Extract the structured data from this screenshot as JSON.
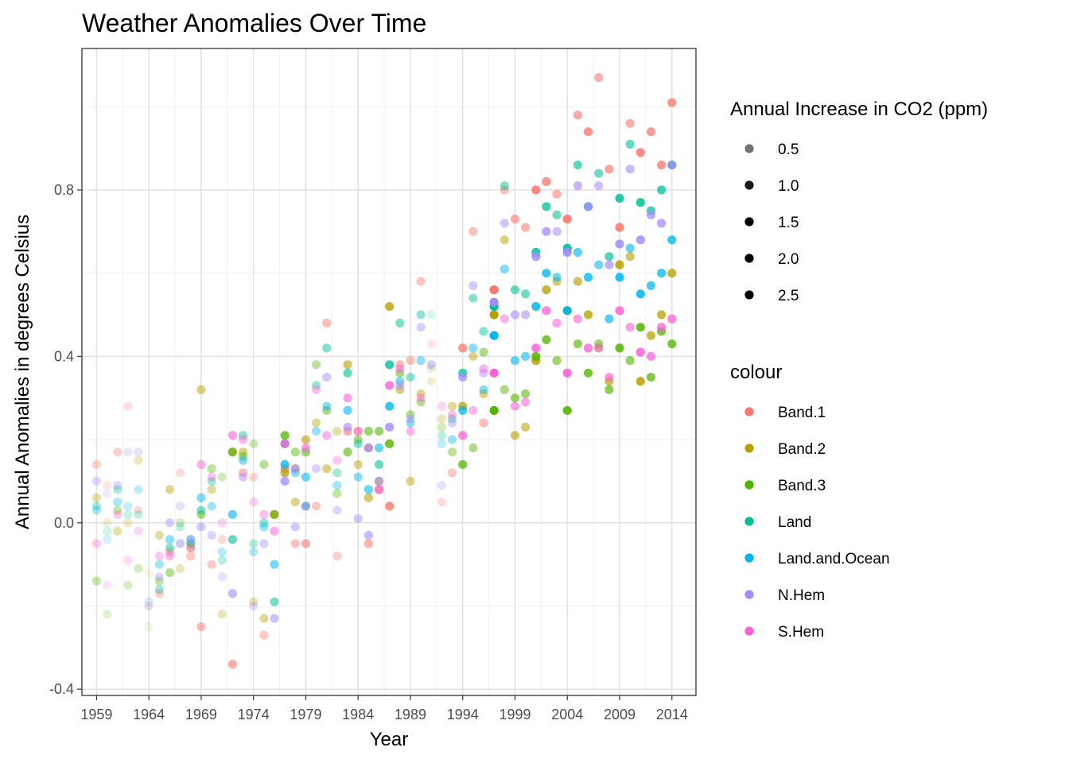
{
  "chart_data": {
    "type": "scatter",
    "title": "Weather Anomalies Over Time",
    "xlabel": "Year",
    "ylabel": "Annual Anomalies in degrees Celsius",
    "xlim": [
      1957.6,
      2016.3
    ],
    "ylim": [
      -0.415,
      1.14
    ],
    "x_ticks": [
      1959,
      1964,
      1969,
      1974,
      1979,
      1984,
      1989,
      1994,
      1999,
      2004,
      2009,
      2014
    ],
    "y_ticks": [
      -0.4,
      0.0,
      0.4,
      0.8
    ],
    "y_tick_labels": [
      "-0.4",
      "0.0",
      "0.4",
      "0.8"
    ],
    "grid": true,
    "legend_position": "right",
    "size_legend": {
      "title": "Annual Increase in CO2 (ppm)",
      "labels": [
        "0.5",
        "1.0",
        "1.5",
        "2.0",
        "2.5"
      ],
      "alphas": [
        0.55,
        0.9,
        1.0,
        1.0,
        1.0
      ]
    },
    "colour_legend": {
      "title": "colour"
    },
    "co2_increase_by_year": [
      0.94,
      0.5,
      0.95,
      0.64,
      0.71,
      0.28,
      1.02,
      1.24,
      0.73,
      1.15,
      1.41,
      1.06,
      0.77,
      1.72,
      1.32,
      0.86,
      1.16,
      1.5,
      2.13,
      1.3,
      1.66,
      1.13,
      1.35,
      0.99,
      1.66,
      1.33,
      1.61,
      1.64,
      2.25,
      1.42,
      1.25,
      1.24,
      0.46,
      0.73,
      1.14,
      2.11,
      1.31,
      1.36,
      2.83,
      1.39,
      1.69,
      1.58,
      2.39,
      2.16,
      1.57,
      2.53,
      1.79,
      2.19,
      1.6,
      1.89,
      2.4,
      1.7,
      2.4,
      2.04,
      2.11,
      2.18
    ],
    "series": [
      {
        "name": "Band.1",
        "color": "#F8766D",
        "x": [
          1959,
          1960,
          1961,
          1962,
          1963,
          1964,
          1965,
          1966,
          1967,
          1968,
          1969,
          1970,
          1971,
          1972,
          1973,
          1974,
          1975,
          1976,
          1977,
          1978,
          1979,
          1980,
          1981,
          1982,
          1983,
          1984,
          1985,
          1986,
          1987,
          1988,
          1989,
          1990,
          1991,
          1992,
          1993,
          1994,
          1995,
          1996,
          1997,
          1998,
          1999,
          2000,
          2001,
          2002,
          2003,
          2004,
          2005,
          2006,
          2007,
          2008,
          2009,
          2010,
          2011,
          2012,
          2013,
          2014
        ],
        "y": [
          0.14,
          0.09,
          0.17,
          0.28,
          0.03,
          -0.2,
          -0.17,
          -0.07,
          0.12,
          -0.08,
          -0.25,
          -0.1,
          -0.04,
          -0.34,
          0.12,
          0.11,
          -0.27,
          0.02,
          0.13,
          -0.05,
          -0.05,
          0.04,
          0.48,
          -0.08,
          0.22,
          0.22,
          -0.05,
          0.08,
          0.04,
          0.38,
          0.39,
          0.58,
          0.43,
          0.05,
          0.12,
          0.42,
          0.7,
          0.24,
          0.56,
          0.8,
          0.73,
          0.71,
          0.8,
          0.82,
          0.79,
          0.73,
          0.98,
          0.94,
          1.07,
          0.85,
          0.71,
          0.96,
          0.89,
          0.94,
          0.86,
          1.01
        ]
      },
      {
        "name": "Band.2",
        "color": "#B79F00",
        "x": [
          1959,
          1960,
          1961,
          1962,
          1963,
          1964,
          1965,
          1966,
          1967,
          1968,
          1969,
          1970,
          1971,
          1972,
          1973,
          1974,
          1975,
          1976,
          1977,
          1978,
          1979,
          1980,
          1981,
          1982,
          1983,
          1984,
          1985,
          1986,
          1987,
          1988,
          1989,
          1990,
          1991,
          1992,
          1993,
          1994,
          1995,
          1996,
          1997,
          1998,
          1999,
          2000,
          2001,
          2002,
          2003,
          2004,
          2005,
          2006,
          2007,
          2008,
          2009,
          2010,
          2011,
          2012,
          2013,
          2014
        ],
        "y": [
          0.06,
          0.0,
          -0.02,
          0.0,
          0.15,
          -0.12,
          -0.03,
          0.08,
          -0.11,
          -0.06,
          0.32,
          0.08,
          -0.22,
          0.17,
          0.17,
          -0.19,
          -0.23,
          0.02,
          0.12,
          0.05,
          0.2,
          0.24,
          0.13,
          0.22,
          0.38,
          0.14,
          0.06,
          0.1,
          0.52,
          0.32,
          0.1,
          0.31,
          0.34,
          0.25,
          0.28,
          0.28,
          0.4,
          0.31,
          0.5,
          0.68,
          0.21,
          0.23,
          0.39,
          0.56,
          0.58,
          0.51,
          0.58,
          0.5,
          0.42,
          0.34,
          0.62,
          0.64,
          0.34,
          0.45,
          0.5,
          0.6
        ]
      },
      {
        "name": "Band.3",
        "color": "#53B400",
        "x": [
          1959,
          1960,
          1961,
          1962,
          1963,
          1964,
          1965,
          1966,
          1967,
          1968,
          1969,
          1970,
          1971,
          1972,
          1973,
          1974,
          1975,
          1976,
          1977,
          1978,
          1979,
          1980,
          1981,
          1982,
          1983,
          1984,
          1985,
          1986,
          1987,
          1988,
          1989,
          1990,
          1991,
          1992,
          1993,
          1994,
          1995,
          1996,
          1997,
          1998,
          1999,
          2000,
          2001,
          2002,
          2003,
          2004,
          2005,
          2006,
          2007,
          2008,
          2009,
          2010,
          2011,
          2012,
          2013,
          2014
        ],
        "y": [
          -0.14,
          -0.22,
          0.03,
          -0.15,
          -0.11,
          -0.25,
          -0.14,
          -0.12,
          0.0,
          -0.05,
          0.02,
          0.13,
          0.11,
          0.17,
          0.16,
          0.19,
          0.14,
          0.02,
          0.21,
          0.17,
          0.17,
          0.38,
          0.27,
          0.07,
          0.17,
          0.2,
          0.22,
          0.22,
          0.19,
          0.36,
          0.26,
          0.29,
          0.37,
          0.23,
          0.17,
          0.14,
          0.18,
          0.41,
          0.27,
          0.32,
          0.3,
          0.31,
          0.4,
          0.44,
          0.39,
          0.27,
          0.43,
          0.36,
          0.43,
          0.32,
          0.42,
          0.39,
          0.47,
          0.35,
          0.46,
          0.43
        ]
      },
      {
        "name": "Land",
        "color": "#00C094",
        "x": [
          1959,
          1960,
          1961,
          1962,
          1963,
          1964,
          1965,
          1966,
          1967,
          1968,
          1969,
          1970,
          1971,
          1972,
          1973,
          1974,
          1975,
          1976,
          1977,
          1978,
          1979,
          1980,
          1981,
          1982,
          1983,
          1984,
          1985,
          1986,
          1987,
          1988,
          1989,
          1990,
          1991,
          1992,
          1993,
          1994,
          1995,
          1996,
          1997,
          1998,
          1999,
          2000,
          2001,
          2002,
          2003,
          2004,
          2005,
          2006,
          2007,
          2008,
          2009,
          2010,
          2011,
          2012,
          2013,
          2014
        ],
        "y": [
          0.04,
          -0.02,
          0.08,
          0.02,
          0.02,
          -0.19,
          -0.16,
          -0.06,
          -0.01,
          -0.05,
          0.03,
          0.1,
          -0.09,
          -0.04,
          0.21,
          -0.05,
          0.0,
          -0.19,
          0.19,
          0.13,
          0.04,
          0.33,
          0.42,
          0.12,
          0.36,
          0.19,
          0.18,
          0.14,
          0.38,
          0.48,
          0.35,
          0.5,
          0.5,
          0.21,
          0.25,
          0.36,
          0.54,
          0.46,
          0.52,
          0.81,
          0.56,
          0.55,
          0.65,
          0.76,
          0.74,
          0.66,
          0.86,
          0.76,
          0.84,
          0.64,
          0.78,
          0.91,
          0.77,
          0.75,
          0.8,
          0.86
        ]
      },
      {
        "name": "Land.and.Ocean",
        "color": "#00B6EB",
        "x": [
          1959,
          1960,
          1961,
          1962,
          1963,
          1964,
          1965,
          1966,
          1967,
          1968,
          1969,
          1970,
          1971,
          1972,
          1973,
          1974,
          1975,
          1976,
          1977,
          1978,
          1979,
          1980,
          1981,
          1982,
          1983,
          1984,
          1985,
          1986,
          1987,
          1988,
          1989,
          1990,
          1991,
          1992,
          1993,
          1994,
          1995,
          1996,
          1997,
          1998,
          1999,
          2000,
          2001,
          2002,
          2003,
          2004,
          2005,
          2006,
          2007,
          2008,
          2009,
          2010,
          2011,
          2012,
          2013,
          2014
        ],
        "y": [
          0.03,
          -0.04,
          0.05,
          0.04,
          0.08,
          -0.2,
          -0.1,
          -0.04,
          -0.05,
          -0.04,
          0.06,
          0.04,
          -0.07,
          0.02,
          0.15,
          -0.07,
          -0.01,
          -0.1,
          0.14,
          0.12,
          0.11,
          0.22,
          0.28,
          0.09,
          0.27,
          0.11,
          0.08,
          0.18,
          0.28,
          0.34,
          0.24,
          0.39,
          0.38,
          0.19,
          0.2,
          0.27,
          0.42,
          0.32,
          0.45,
          0.61,
          0.39,
          0.4,
          0.52,
          0.6,
          0.59,
          0.51,
          0.65,
          0.59,
          0.62,
          0.49,
          0.59,
          0.66,
          0.55,
          0.57,
          0.6,
          0.68
        ]
      },
      {
        "name": "N.Hem",
        "color": "#A58AFF",
        "x": [
          1959,
          1960,
          1961,
          1962,
          1963,
          1964,
          1965,
          1966,
          1967,
          1968,
          1969,
          1970,
          1971,
          1972,
          1973,
          1974,
          1975,
          1976,
          1977,
          1978,
          1979,
          1980,
          1981,
          1982,
          1983,
          1984,
          1985,
          1986,
          1987,
          1988,
          1989,
          1990,
          1991,
          1992,
          1993,
          1994,
          1995,
          1996,
          1997,
          1998,
          1999,
          2000,
          2001,
          2002,
          2003,
          2004,
          2005,
          2006,
          2007,
          2008,
          2009,
          2010,
          2011,
          2012,
          2013,
          2014
        ],
        "y": [
          0.1,
          0.07,
          0.09,
          0.17,
          0.17,
          -0.19,
          -0.13,
          0.0,
          0.04,
          -0.04,
          -0.01,
          -0.03,
          -0.13,
          -0.17,
          0.11,
          -0.2,
          -0.05,
          -0.23,
          0.1,
          -0.01,
          0.04,
          0.13,
          0.35,
          0.03,
          0.23,
          0.01,
          -0.03,
          0.1,
          0.23,
          0.33,
          0.25,
          0.47,
          0.38,
          0.09,
          0.24,
          0.35,
          0.57,
          0.36,
          0.53,
          0.72,
          0.5,
          0.5,
          0.64,
          0.7,
          0.7,
          0.65,
          0.81,
          0.76,
          0.81,
          0.62,
          0.67,
          0.85,
          0.68,
          0.74,
          0.72,
          0.86
        ]
      },
      {
        "name": "S.Hem",
        "color": "#FB61D7",
        "x": [
          1959,
          1960,
          1961,
          1962,
          1963,
          1964,
          1965,
          1966,
          1967,
          1968,
          1969,
          1970,
          1971,
          1972,
          1973,
          1974,
          1975,
          1976,
          1977,
          1978,
          1979,
          1980,
          1981,
          1982,
          1983,
          1984,
          1985,
          1986,
          1987,
          1988,
          1989,
          1990,
          1991,
          1992,
          1993,
          1994,
          1995,
          1996,
          1997,
          1998,
          1999,
          2000,
          2001,
          2002,
          2003,
          2004,
          2005,
          2006,
          2007,
          2008,
          2009,
          2010,
          2011,
          2012,
          2013,
          2014
        ],
        "y": [
          -0.05,
          -0.15,
          0.02,
          -0.09,
          -0.02,
          -0.2,
          -0.08,
          -0.08,
          -0.05,
          -0.06,
          0.14,
          0.11,
          0.0,
          0.21,
          0.2,
          0.05,
          0.02,
          -0.02,
          0.19,
          0.13,
          0.18,
          0.32,
          0.21,
          0.15,
          0.3,
          0.22,
          0.18,
          0.08,
          0.33,
          0.37,
          0.22,
          0.3,
          0.38,
          0.28,
          0.26,
          0.21,
          0.27,
          0.37,
          0.36,
          0.49,
          0.28,
          0.29,
          0.42,
          0.51,
          0.48,
          0.36,
          0.49,
          0.42,
          0.42,
          0.35,
          0.51,
          0.47,
          0.41,
          0.4,
          0.47,
          0.49
        ]
      }
    ]
  }
}
